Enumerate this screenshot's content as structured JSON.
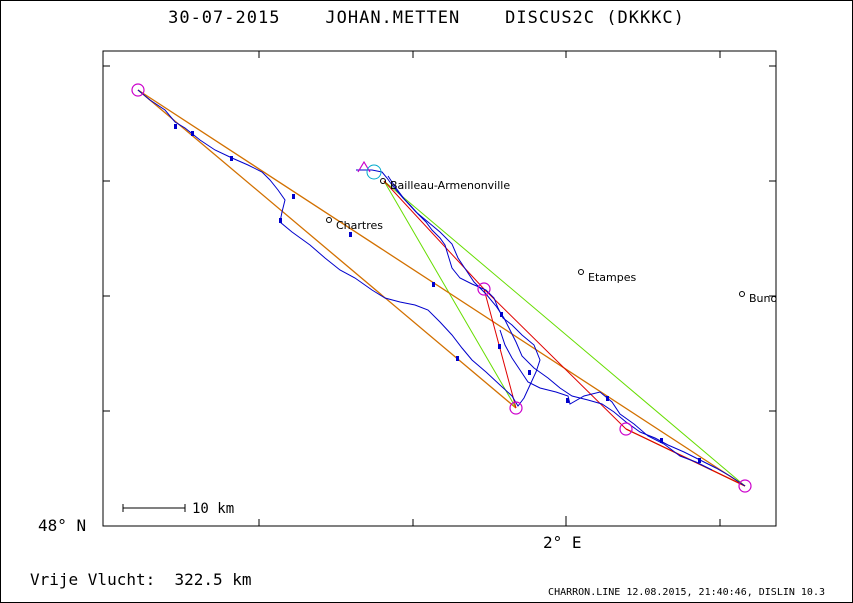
{
  "title": "30-07-2015    JOHAN.METTEN    DISCUS2C (DKKKC)",
  "axes": {
    "lat_label": "48° N",
    "lon_label": "2° E"
  },
  "scale_bar": {
    "label": "10 km"
  },
  "places": [
    {
      "name": "Bailleau-Armenonville"
    },
    {
      "name": "Chartres"
    },
    {
      "name": "Etampes"
    },
    {
      "name": "Buno"
    }
  ],
  "distance_text": "Vrije Vlucht:  322.5 km",
  "footer_text": "CHARRON.LINE 12.08.2015, 21:40:46, DISLIN 10.3",
  "colors": {
    "track": "#0000cc",
    "task_line": "#d27000",
    "route_red": "#e00000",
    "route_green": "#66dd00",
    "turnpoint": "#cc00cc",
    "start": "#00aacc"
  }
}
